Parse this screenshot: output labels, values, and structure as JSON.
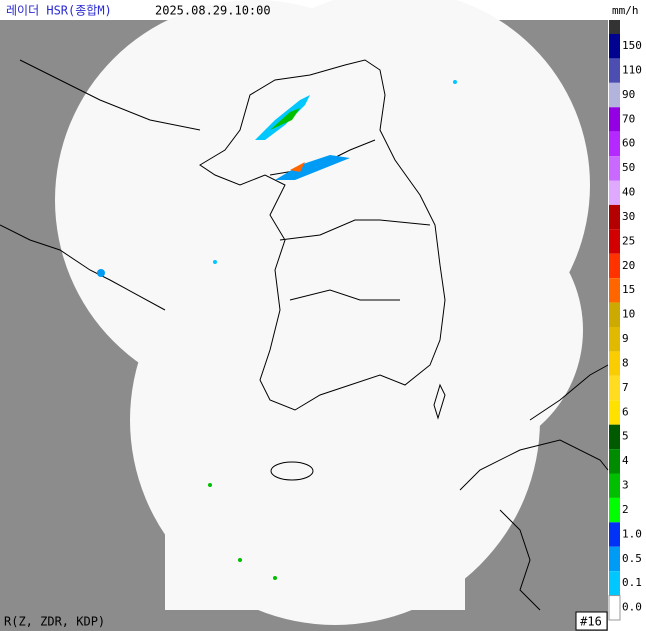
{
  "header": {
    "title": "레이더 HSR(종합M)",
    "time": "2025.08.29.10:00",
    "unit": "mm/h"
  },
  "legend": {
    "items": [
      {
        "label": "150",
        "color": "#000390"
      },
      {
        "label": "110",
        "color": "#4c4eb1"
      },
      {
        "label": "90",
        "color": "#b3b4de"
      },
      {
        "label": "70",
        "color": "#9300e4"
      },
      {
        "label": "60",
        "color": "#b329ff"
      },
      {
        "label": "50",
        "color": "#c969ff"
      },
      {
        "label": "40",
        "color": "#dfa9ff"
      },
      {
        "label": "30",
        "color": "#b40000"
      },
      {
        "label": "25",
        "color": "#d20000"
      },
      {
        "label": "20",
        "color": "#ff3200"
      },
      {
        "label": "15",
        "color": "#ff6600"
      },
      {
        "label": "10",
        "color": "#ccaa00"
      },
      {
        "label": "9",
        "color": "#e0b900"
      },
      {
        "label": "8",
        "color": "#f9cd00"
      },
      {
        "label": "7",
        "color": "#ffdc1f"
      },
      {
        "label": "6",
        "color": "#ffe100"
      },
      {
        "label": "5",
        "color": "#005a00"
      },
      {
        "label": "4",
        "color": "#008c00"
      },
      {
        "label": "3",
        "color": "#00be00"
      },
      {
        "label": "2",
        "color": "#00ff00"
      },
      {
        "label": "1.0",
        "color": "#0033f5"
      },
      {
        "label": "0.5",
        "color": "#009bf5"
      },
      {
        "label": "0.1",
        "color": "#00c8ff"
      },
      {
        "label": "0.0",
        "color": "#ffffff"
      }
    ]
  },
  "footer": {
    "algorithm": "R(Z, ZDR, KDP)",
    "frame": "#16"
  }
}
